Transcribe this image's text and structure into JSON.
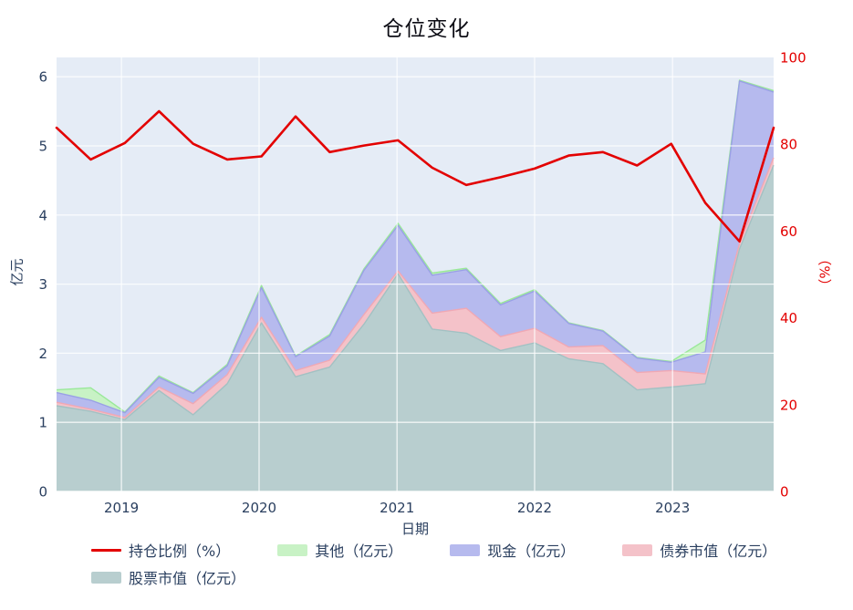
{
  "title": "仓位变化",
  "xaxis": {
    "title": "日期",
    "ticks": [
      "2019",
      "2020",
      "2021",
      "2022",
      "2023"
    ]
  },
  "yaxis_left": {
    "title": "亿元",
    "ticks": [
      0,
      1,
      2,
      3,
      4,
      5,
      6
    ],
    "range": [
      0,
      6.28
    ],
    "color": "#2a3f5f"
  },
  "yaxis_right": {
    "title": "（%）",
    "ticks": [
      0,
      20,
      40,
      60,
      80,
      100
    ],
    "range": [
      0,
      100
    ],
    "color": "#e30000"
  },
  "plot": {
    "bg_color": "#e5ecf6",
    "grid_color": "#ffffff",
    "grid_on": true,
    "legend_position": "bottom-left"
  },
  "chart_data": {
    "type": "area",
    "title": "仓位变化",
    "xlabel": "日期",
    "ylabel_left": "亿元",
    "ylabel_right": "（%）",
    "x_labels": [
      "2018-06",
      "2018-09",
      "2018-12",
      "2019-03",
      "2019-06",
      "2019-09",
      "2019-12",
      "2020-03",
      "2020-06",
      "2020-09",
      "2020-12",
      "2021-03",
      "2021-06",
      "2021-09",
      "2021-12",
      "2022-03",
      "2022-06",
      "2022-09",
      "2022-12",
      "2023-03",
      "2023-06",
      "2023-09"
    ],
    "series": [
      {
        "key": "ratio",
        "name": "持仓比例（%）",
        "type": "line",
        "axis": "right",
        "color": "#e30000",
        "values": [
          83.8,
          76.5,
          80.3,
          87.6,
          80.1,
          76.5,
          77.2,
          86.4,
          78.2,
          79.7,
          80.9,
          74.6,
          70.6,
          72.4,
          74.4,
          77.4,
          78.2,
          75.1,
          80.1,
          66.5,
          57.6,
          83.8
        ]
      },
      {
        "key": "other",
        "name": "其他（亿元）",
        "type": "area",
        "axis": "left",
        "stack_level": 4,
        "color": "#9ae89a",
        "fill": "#c8f2c5",
        "values": [
          0.04,
          0.18,
          0.01,
          0.02,
          0.01,
          0.02,
          0.03,
          0.01,
          0.02,
          0.02,
          0.03,
          0.03,
          0.02,
          0.02,
          0.02,
          0.01,
          0.01,
          0.01,
          0.01,
          0.17,
          0.01,
          0.02
        ]
      },
      {
        "key": "cash",
        "name": "现金（亿元）",
        "type": "area",
        "axis": "left",
        "stack_level": 3,
        "color": "#9aa0e6",
        "fill": "#b6baee",
        "values": [
          0.14,
          0.13,
          0.07,
          0.14,
          0.15,
          0.13,
          0.43,
          0.2,
          0.35,
          0.64,
          0.66,
          0.55,
          0.56,
          0.46,
          0.54,
          0.34,
          0.21,
          0.21,
          0.12,
          0.32,
          2.35,
          0.95
        ]
      },
      {
        "key": "bond",
        "name": "债券市值（亿元）",
        "type": "area",
        "axis": "left",
        "stack_level": 2,
        "color": "#f0a8b4",
        "fill": "#f4c2c9",
        "values": [
          0.05,
          0.03,
          0.03,
          0.05,
          0.16,
          0.13,
          0.08,
          0.09,
          0.1,
          0.14,
          0.04,
          0.23,
          0.36,
          0.2,
          0.21,
          0.17,
          0.26,
          0.25,
          0.24,
          0.14,
          0.08,
          0.11
        ]
      },
      {
        "key": "stock",
        "name": "股票市值（亿元）",
        "type": "area",
        "axis": "left",
        "stack_level": 1,
        "color": "#a2c1c3",
        "fill": "#b8cecf",
        "values": [
          1.24,
          1.16,
          1.04,
          1.46,
          1.11,
          1.56,
          2.44,
          1.66,
          1.8,
          2.42,
          3.15,
          2.35,
          2.29,
          2.04,
          2.15,
          1.92,
          1.85,
          1.47,
          1.51,
          1.56,
          3.51,
          4.72
        ]
      }
    ]
  }
}
